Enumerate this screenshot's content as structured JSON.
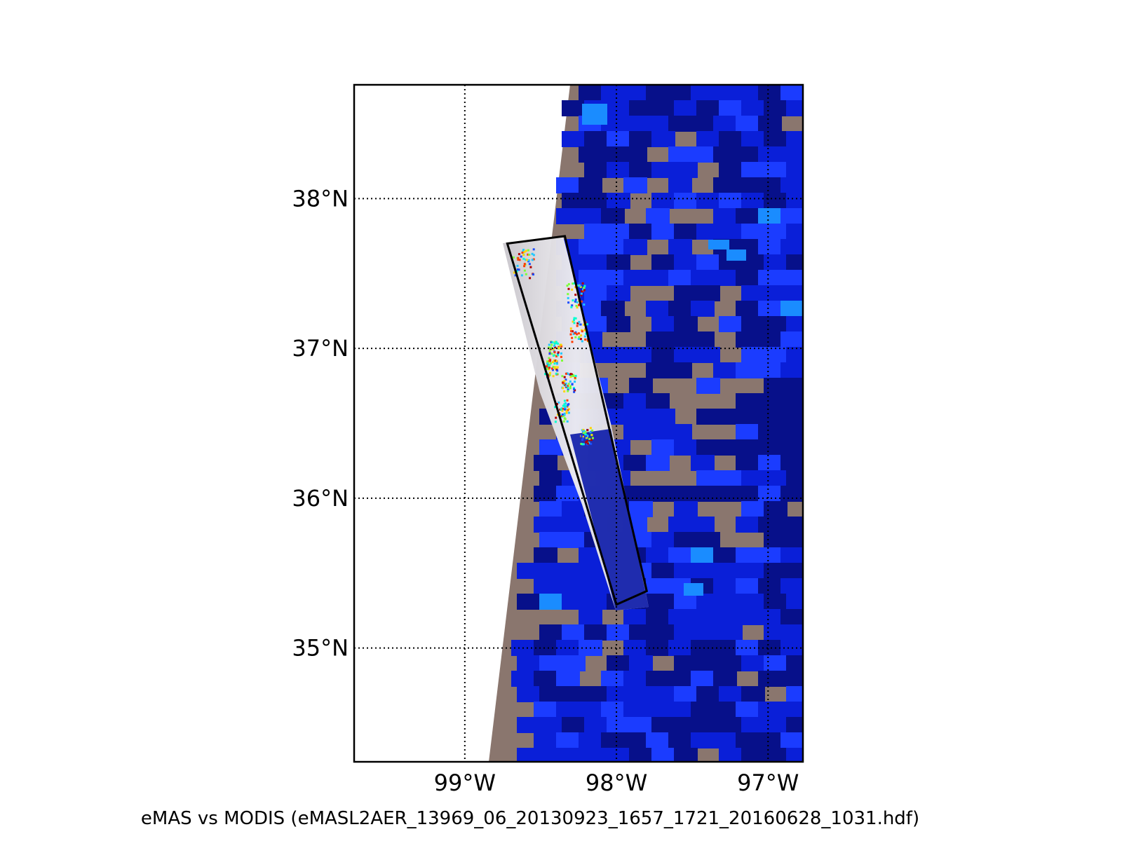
{
  "map": {
    "type": "map",
    "lat_ticks": [
      {
        "value": 38,
        "label": "38°N"
      },
      {
        "value": 37,
        "label": "37°N"
      },
      {
        "value": 36,
        "label": "36°N"
      },
      {
        "value": 35,
        "label": "35°N"
      }
    ],
    "lon_ticks": [
      {
        "value": -99,
        "label": "99°W"
      },
      {
        "value": -98,
        "label": "98°W"
      },
      {
        "value": -97,
        "label": "97°W"
      }
    ],
    "lon_range": [
      -99.73,
      -96.77
    ],
    "lat_range": [
      34.24,
      38.76
    ],
    "grid": true,
    "caption": "eMAS vs MODIS (eMASL2AER_13969_06_20130923_1657_1721_20160628_1031.hdf)",
    "colors": {
      "modis_dark": "#07108a",
      "modis_mid": "#0a1fd8",
      "modis_bright": "#1b3cff",
      "modis_cyan": "#1a8cff",
      "land": "#8a766e",
      "cloud": "#e7e5ea",
      "swath_outline": "#000000"
    },
    "flight_swath_corners": [
      [
        -98.72,
        37.7
      ],
      [
        -98.34,
        37.75
      ],
      [
        -97.8,
        35.38
      ],
      [
        -98.0,
        35.29
      ]
    ]
  }
}
